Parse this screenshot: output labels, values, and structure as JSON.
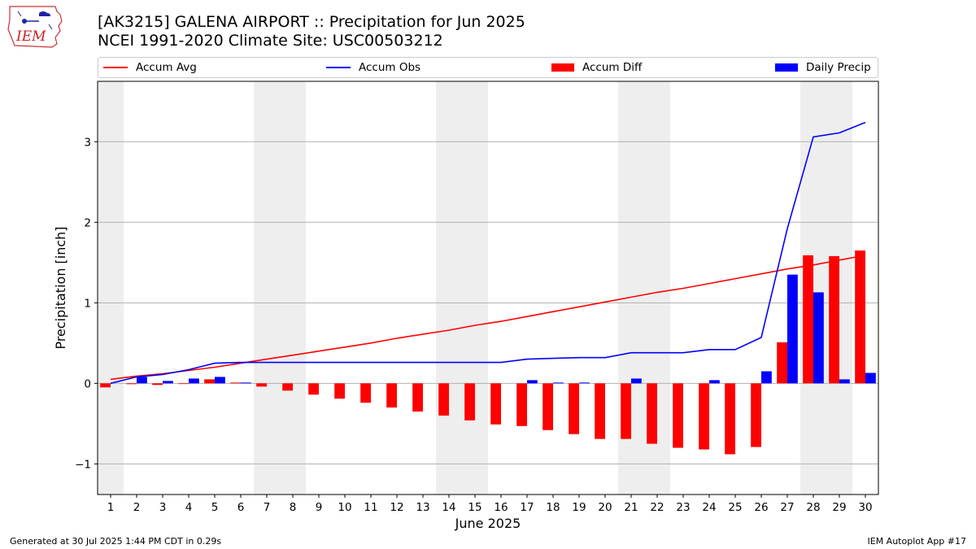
{
  "header": {
    "title_line1": "[AK3215] GALENA AIRPORT :: Precipitation for Jun 2025",
    "title_line2": "NCEI 1991-2020 Climate Site: USC00503212",
    "logo_text": "IEM"
  },
  "footer": {
    "generated": "Generated at 30 Jul 2025 1:44 PM CDT in 0.29s",
    "app": "IEM Autoplot App #17"
  },
  "colors": {
    "accum_avg": "#ff0000",
    "accum_obs": "#0000ff",
    "accum_diff": "#ff0000",
    "daily_precip": "#0000ff",
    "weekend_shade": "#eeeeee",
    "grid": "#b0b0b0"
  },
  "chart_data": {
    "type": "bar",
    "xlabel": "June 2025",
    "ylabel": "Precipitation [inch]",
    "ylim": [
      -1.38,
      3.75
    ],
    "yticks": [
      -1,
      0,
      1,
      2,
      3
    ],
    "ytick_labels": [
      "−1",
      "0",
      "1",
      "2",
      "3"
    ],
    "x": [
      1,
      2,
      3,
      4,
      5,
      6,
      7,
      8,
      9,
      10,
      11,
      12,
      13,
      14,
      15,
      16,
      17,
      18,
      19,
      20,
      21,
      22,
      23,
      24,
      25,
      26,
      27,
      28,
      29,
      30
    ],
    "grid": "horizontal",
    "legend_placement": "top",
    "shaded_days": [
      [
        1,
        1
      ],
      [
        7,
        8
      ],
      [
        14,
        15
      ],
      [
        21,
        22
      ],
      [
        28,
        29
      ]
    ],
    "series": [
      {
        "name": "Accum Avg",
        "kind": "line",
        "values": [
          0.05,
          0.09,
          0.12,
          0.16,
          0.2,
          0.25,
          0.3,
          0.35,
          0.4,
          0.45,
          0.5,
          0.56,
          0.61,
          0.66,
          0.72,
          0.77,
          0.83,
          0.89,
          0.95,
          1.01,
          1.07,
          1.13,
          1.18,
          1.24,
          1.3,
          1.36,
          1.42,
          1.47,
          1.53,
          1.59
        ]
      },
      {
        "name": "Accum Obs",
        "kind": "line",
        "values": [
          0.0,
          0.08,
          0.11,
          0.17,
          0.25,
          0.26,
          0.26,
          0.26,
          0.26,
          0.26,
          0.26,
          0.26,
          0.26,
          0.26,
          0.26,
          0.26,
          0.3,
          0.31,
          0.32,
          0.32,
          0.38,
          0.38,
          0.38,
          0.42,
          0.42,
          0.57,
          1.92,
          3.06,
          3.11,
          3.24
        ]
      },
      {
        "name": "Accum Diff",
        "kind": "bar",
        "values": [
          -0.05,
          -0.01,
          -0.02,
          0.0,
          0.05,
          0.01,
          -0.04,
          -0.09,
          -0.14,
          -0.19,
          -0.24,
          -0.3,
          -0.35,
          -0.4,
          -0.46,
          -0.51,
          -0.53,
          -0.58,
          -0.63,
          -0.69,
          -0.69,
          -0.75,
          -0.8,
          -0.82,
          -0.88,
          -0.79,
          0.51,
          1.59,
          1.58,
          1.65
        ]
      },
      {
        "name": "Daily Precip",
        "kind": "bar",
        "values": [
          0.0,
          0.08,
          0.03,
          0.06,
          0.08,
          0.01,
          0.0,
          0.0,
          0.0,
          0.0,
          0.0,
          0.0,
          0.0,
          0.0,
          0.0,
          0.0,
          0.04,
          0.01,
          0.01,
          0.0,
          0.06,
          0.0,
          0.0,
          0.04,
          0.0,
          0.15,
          1.35,
          1.13,
          0.05,
          0.13
        ]
      }
    ]
  }
}
